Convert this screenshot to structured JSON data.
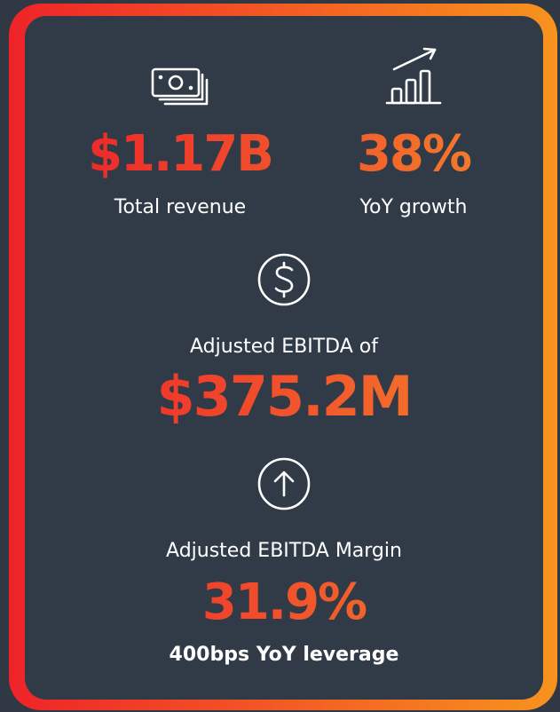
{
  "stats": [
    {
      "value": "$1.17B",
      "label": "Total revenue"
    },
    {
      "value": "38%",
      "label": "YoY growth"
    }
  ],
  "ebitda": {
    "label": "Adjusted EBITDA of",
    "value": "$375.2M"
  },
  "margin": {
    "label": "Adjusted EBITDA Margin",
    "value": "31.9%",
    "note": "400bps YoY leverage"
  }
}
